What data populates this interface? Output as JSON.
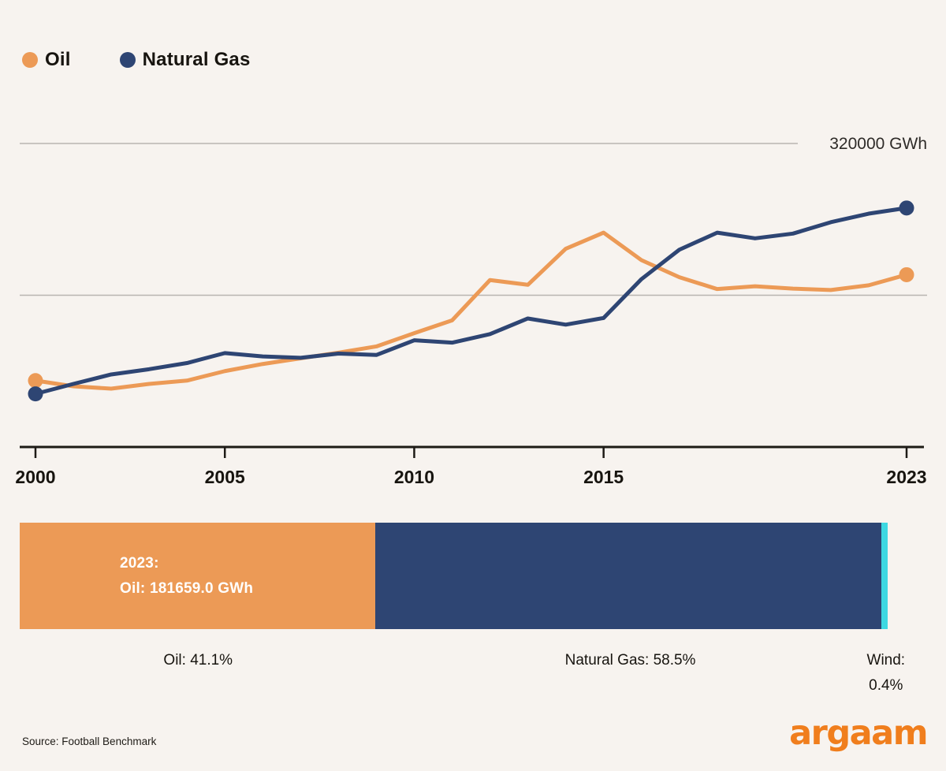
{
  "colors": {
    "background": "#F7F3EF",
    "grid": "#B8B4B0",
    "axis": "#1E1B16",
    "text": "#17140F",
    "grid_label": "#2E2B28",
    "oil": "#EC9A56",
    "natural_gas": "#2E4573",
    "wind": "#3DD8E2",
    "bar_text": "#FFFFFF",
    "logo_orange": "#F07E1D"
  },
  "legend": {
    "items": [
      {
        "label": "Oil",
        "color": "#EC9A56"
      },
      {
        "label": "Natural Gas",
        "color": "#2E4573"
      }
    ]
  },
  "chart_data": [
    {
      "type": "line",
      "title": "",
      "xlabel": "",
      "ylabel": "GWh",
      "unit": "GWh",
      "grid_on": true,
      "legend_position": "top-left",
      "ylim": [
        0,
        320000
      ],
      "x": [
        2000,
        2001,
        2002,
        2003,
        2004,
        2005,
        2006,
        2007,
        2008,
        2009,
        2010,
        2011,
        2012,
        2013,
        2014,
        2015,
        2016,
        2017,
        2018,
        2019,
        2020,
        2021,
        2022,
        2023
      ],
      "x_ticks": [
        2000,
        2005,
        2010,
        2015,
        2023
      ],
      "gridlines": [
        {
          "value": 320000,
          "label": "320000 GWh"
        },
        {
          "value": 160000,
          "label": ""
        }
      ],
      "series": [
        {
          "name": "Oil",
          "color": "#EC9A56",
          "values": [
            70000,
            64000,
            61500,
            66500,
            70000,
            80000,
            87500,
            93500,
            99500,
            106000,
            120000,
            133500,
            176000,
            171000,
            209000,
            226000,
            197000,
            179000,
            166500,
            169500,
            167000,
            165500,
            170500,
            181659
          ]
        },
        {
          "name": "Natural Gas",
          "color": "#2E4573",
          "values": [
            56000,
            66500,
            76500,
            82000,
            88500,
            99000,
            95500,
            94000,
            98500,
            97000,
            112500,
            110000,
            119000,
            135500,
            129000,
            136000,
            177000,
            208000,
            226000,
            220000,
            225000,
            237000,
            246000,
            252000
          ]
        }
      ]
    },
    {
      "type": "stacked-bar",
      "year": "2023",
      "segments": [
        {
          "name": "Oil",
          "percent": 41.1,
          "color": "#EC9A56",
          "label": "Oil: 41.1%"
        },
        {
          "name": "Natural Gas",
          "percent": 58.5,
          "color": "#2E4573",
          "label": "Natural Gas: 58.5%"
        },
        {
          "name": "Wind",
          "percent": 0.4,
          "color": "#3DD8E2",
          "label_line1": "Wind:",
          "label_line2": "0.4%"
        }
      ],
      "annotation": {
        "line1": "2023:",
        "line2": "Oil: 181659.0 GWh"
      }
    }
  ],
  "footer": {
    "source": "Source: Football Benchmark",
    "logo": "argaam"
  }
}
